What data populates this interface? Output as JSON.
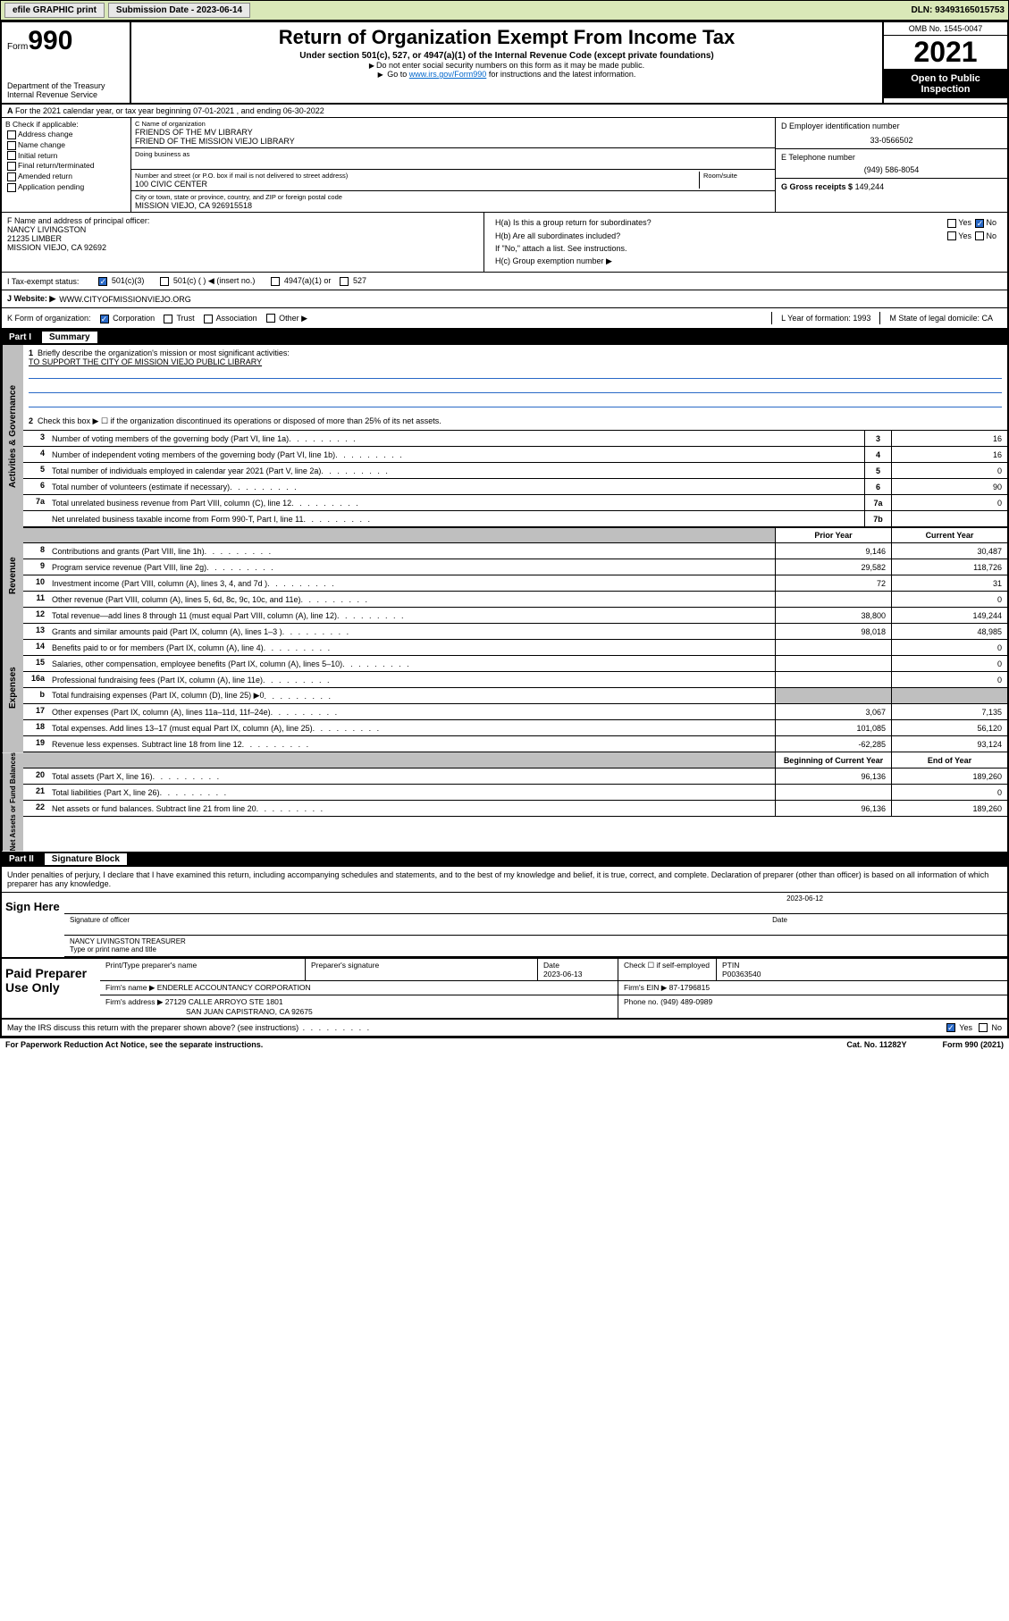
{
  "topbar": {
    "efile": "efile GRAPHIC print",
    "submission": "Submission Date - 2023-06-14",
    "dln": "DLN: 93493165015753"
  },
  "header": {
    "form_label": "Form",
    "form_num": "990",
    "dept": "Department of the Treasury",
    "irs": "Internal Revenue Service",
    "title": "Return of Organization Exempt From Income Tax",
    "sub": "Under section 501(c), 527, or 4947(a)(1) of the Internal Revenue Code (except private foundations)",
    "note1": "Do not enter social security numbers on this form as it may be made public.",
    "note2_pre": "Go to ",
    "note2_link": "www.irs.gov/Form990",
    "note2_post": " for instructions and the latest information.",
    "omb": "OMB No. 1545-0047",
    "year": "2021",
    "open": "Open to Public Inspection"
  },
  "row_a": "For the 2021 calendar year, or tax year beginning 07-01-2021   , and ending 06-30-2022",
  "box_b": {
    "hdr": "B Check if applicable:",
    "opts": [
      "Address change",
      "Name change",
      "Initial return",
      "Final return/terminated",
      "Amended return",
      "Application pending"
    ]
  },
  "box_c": {
    "name_lbl": "C Name of organization",
    "name1": "FRIENDS OF THE MV LIBRARY",
    "name2": "FRIEND OF THE MISSION VIEJO LIBRARY",
    "dba_lbl": "Doing business as",
    "addr_lbl": "Number and street (or P.O. box if mail is not delivered to street address)",
    "room_lbl": "Room/suite",
    "addr": "100 CIVIC CENTER",
    "city_lbl": "City or town, state or province, country, and ZIP or foreign postal code",
    "city": "MISSION VIEJO, CA  926915518"
  },
  "box_d": {
    "lbl": "D Employer identification number",
    "val": "33-0566502"
  },
  "box_e": {
    "lbl": "E Telephone number",
    "val": "(949) 586-8054"
  },
  "box_g": {
    "lbl": "G Gross receipts $",
    "val": "149,244"
  },
  "box_f": {
    "lbl": "F  Name and address of principal officer:",
    "name": "NANCY LIVINGSTON",
    "addr1": "21235 LIMBER",
    "addr2": "MISSION VIEJO, CA  92692"
  },
  "box_h": {
    "a": "H(a)  Is this a group return for subordinates?",
    "b": "H(b)  Are all subordinates included?",
    "b_note": "If \"No,\" attach a list. See instructions.",
    "c": "H(c)  Group exemption number ▶",
    "yes": "Yes",
    "no": "No"
  },
  "row_i": {
    "lbl": "I     Tax-exempt status:",
    "o1": "501(c)(3)",
    "o2": "501(c) (  ) ◀ (insert no.)",
    "o3": "4947(a)(1) or",
    "o4": "527"
  },
  "row_j": {
    "lbl": "J     Website: ▶",
    "val": "WWW.CITYOFMISSIONVIEJO.ORG"
  },
  "row_k": {
    "lbl": "K Form of organization:",
    "o1": "Corporation",
    "o2": "Trust",
    "o3": "Association",
    "o4": "Other ▶"
  },
  "row_l": {
    "lbl": "L Year of formation:",
    "val": "1993"
  },
  "row_m": {
    "lbl": "M State of legal domicile:",
    "val": "CA"
  },
  "part1": {
    "title": "Part I",
    "name": "Summary",
    "tabs": [
      "Activities & Governance",
      "Revenue",
      "Expenses",
      "Net Assets or Fund Balances"
    ],
    "l1": "Briefly describe the organization's mission or most significant activities:",
    "l1_val": "TO SUPPORT THE CITY OF MISSION VIEJO PUBLIC LIBRARY",
    "l2": "Check this box ▶ ☐  if the organization discontinued its operations or disposed of more than 25% of its net assets.",
    "lines_a": [
      {
        "n": "3",
        "t": "Number of voting members of the governing body (Part VI, line 1a)",
        "b": "3",
        "v": "16"
      },
      {
        "n": "4",
        "t": "Number of independent voting members of the governing body (Part VI, line 1b)",
        "b": "4",
        "v": "16"
      },
      {
        "n": "5",
        "t": "Total number of individuals employed in calendar year 2021 (Part V, line 2a)",
        "b": "5",
        "v": "0"
      },
      {
        "n": "6",
        "t": "Total number of volunteers (estimate if necessary)",
        "b": "6",
        "v": "90"
      },
      {
        "n": "7a",
        "t": "Total unrelated business revenue from Part VIII, column (C), line 12",
        "b": "7a",
        "v": "0"
      },
      {
        "n": "",
        "t": "Net unrelated business taxable income from Form 990-T, Part I, line 11",
        "b": "7b",
        "v": ""
      }
    ],
    "col_prior": "Prior Year",
    "col_curr": "Current Year",
    "col_beg": "Beginning of Current Year",
    "col_end": "End of Year",
    "lines_r": [
      {
        "n": "8",
        "t": "Contributions and grants (Part VIII, line 1h)",
        "p": "9,146",
        "c": "30,487"
      },
      {
        "n": "9",
        "t": "Program service revenue (Part VIII, line 2g)",
        "p": "29,582",
        "c": "118,726"
      },
      {
        "n": "10",
        "t": "Investment income (Part VIII, column (A), lines 3, 4, and 7d )",
        "p": "72",
        "c": "31"
      },
      {
        "n": "11",
        "t": "Other revenue (Part VIII, column (A), lines 5, 6d, 8c, 9c, 10c, and 11e)",
        "p": "",
        "c": "0"
      },
      {
        "n": "12",
        "t": "Total revenue—add lines 8 through 11 (must equal Part VIII, column (A), line 12)",
        "p": "38,800",
        "c": "149,244"
      }
    ],
    "lines_e": [
      {
        "n": "13",
        "t": "Grants and similar amounts paid (Part IX, column (A), lines 1–3 )",
        "p": "98,018",
        "c": "48,985"
      },
      {
        "n": "14",
        "t": "Benefits paid to or for members (Part IX, column (A), line 4)",
        "p": "",
        "c": "0"
      },
      {
        "n": "15",
        "t": "Salaries, other compensation, employee benefits (Part IX, column (A), lines 5–10)",
        "p": "",
        "c": "0"
      },
      {
        "n": "16a",
        "t": "Professional fundraising fees (Part IX, column (A), line 11e)",
        "p": "",
        "c": "0"
      },
      {
        "n": "b",
        "t": "Total fundraising expenses (Part IX, column (D), line 25) ▶0",
        "p": "",
        "c": "",
        "shade": true
      },
      {
        "n": "17",
        "t": "Other expenses (Part IX, column (A), lines 11a–11d, 11f–24e)",
        "p": "3,067",
        "c": "7,135"
      },
      {
        "n": "18",
        "t": "Total expenses. Add lines 13–17 (must equal Part IX, column (A), line 25)",
        "p": "101,085",
        "c": "56,120"
      },
      {
        "n": "19",
        "t": "Revenue less expenses. Subtract line 18 from line 12",
        "p": "-62,285",
        "c": "93,124"
      }
    ],
    "lines_n": [
      {
        "n": "20",
        "t": "Total assets (Part X, line 16)",
        "p": "96,136",
        "c": "189,260"
      },
      {
        "n": "21",
        "t": "Total liabilities (Part X, line 26)",
        "p": "",
        "c": "0"
      },
      {
        "n": "22",
        "t": "Net assets or fund balances. Subtract line 21 from line 20",
        "p": "96,136",
        "c": "189,260"
      }
    ]
  },
  "part2": {
    "title": "Part II",
    "name": "Signature Block",
    "decl": "Under penalties of perjury, I declare that I have examined this return, including accompanying schedules and statements, and to the best of my knowledge and belief, it is true, correct, and complete. Declaration of preparer (other than officer) is based on all information of which preparer has any knowledge.",
    "sign_here": "Sign Here",
    "sig_off": "Signature of officer",
    "sig_date": "Date",
    "sig_date_val": "2023-06-12",
    "printed": "NANCY LIVINGSTON  TREASURER",
    "printed_lbl": "Type or print name and title",
    "paid": "Paid Preparer Use Only",
    "pp_name_lbl": "Print/Type preparer's name",
    "pp_sig_lbl": "Preparer's signature",
    "pp_date_lbl": "Date",
    "pp_date": "2023-06-13",
    "pp_check": "Check ☐ if self-employed",
    "pp_ptin_lbl": "PTIN",
    "pp_ptin": "P00363540",
    "firm_name_lbl": "Firm's name    ▶",
    "firm_name": "ENDERLE ACCOUNTANCY CORPORATION",
    "firm_ein_lbl": "Firm's EIN ▶",
    "firm_ein": "87-1796815",
    "firm_addr_lbl": "Firm's address ▶",
    "firm_addr1": "27129 CALLE ARROYO STE 1801",
    "firm_addr2": "SAN JUAN CAPISTRANO, CA  92675",
    "firm_phone_lbl": "Phone no.",
    "firm_phone": "(949) 489-0989"
  },
  "footer": {
    "discuss": "May the IRS discuss this return with the preparer shown above? (see instructions)",
    "yes": "Yes",
    "no": "No",
    "pra": "For Paperwork Reduction Act Notice, see the separate instructions.",
    "cat": "Cat. No. 11282Y",
    "form": "Form 990 (2021)"
  }
}
